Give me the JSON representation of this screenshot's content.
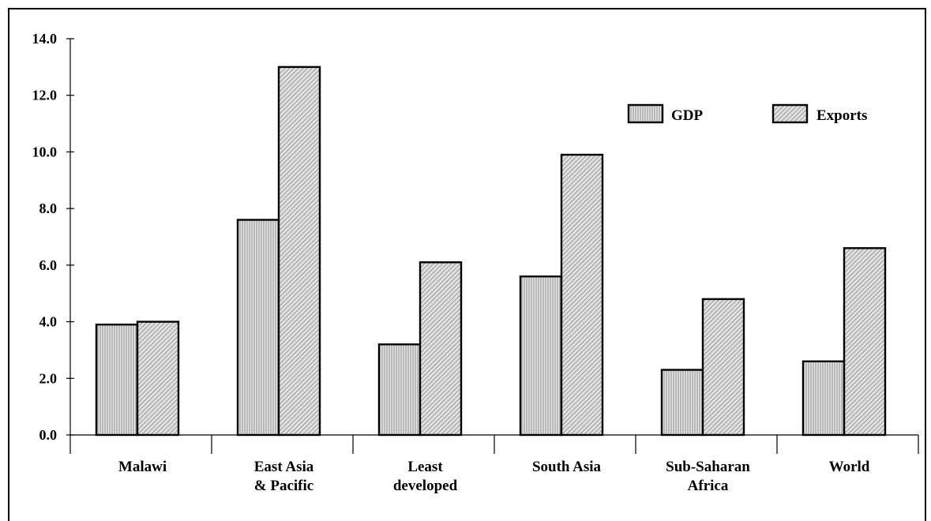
{
  "chart_data": {
    "type": "bar",
    "title": "",
    "xlabel": "",
    "ylabel": "",
    "ylim": [
      0,
      14
    ],
    "y_ticks": [
      "0.0",
      "2.0",
      "4.0",
      "6.0",
      "8.0",
      "10.0",
      "12.0",
      "14.0"
    ],
    "categories": [
      [
        "Malawi"
      ],
      [
        "East Asia",
        "& Pacific"
      ],
      [
        "Least",
        "developed"
      ],
      [
        "South Asia"
      ],
      [
        "Sub-Saharan",
        "Africa"
      ],
      [
        "World"
      ]
    ],
    "series": [
      {
        "name": "GDP",
        "values": [
          3.9,
          7.6,
          3.2,
          5.6,
          2.3,
          2.6
        ]
      },
      {
        "name": "Exports",
        "values": [
          4.0,
          13.0,
          6.1,
          9.9,
          4.8,
          6.6
        ]
      }
    ],
    "legend_position": "top-right",
    "grid": false,
    "colors": {
      "GDP": "#d9d9d9",
      "Exports": "#c8c8c8",
      "outline": "#000000"
    },
    "patterns": {
      "GDP": "vertical-hatch",
      "Exports": "diagonal-hatch"
    }
  }
}
